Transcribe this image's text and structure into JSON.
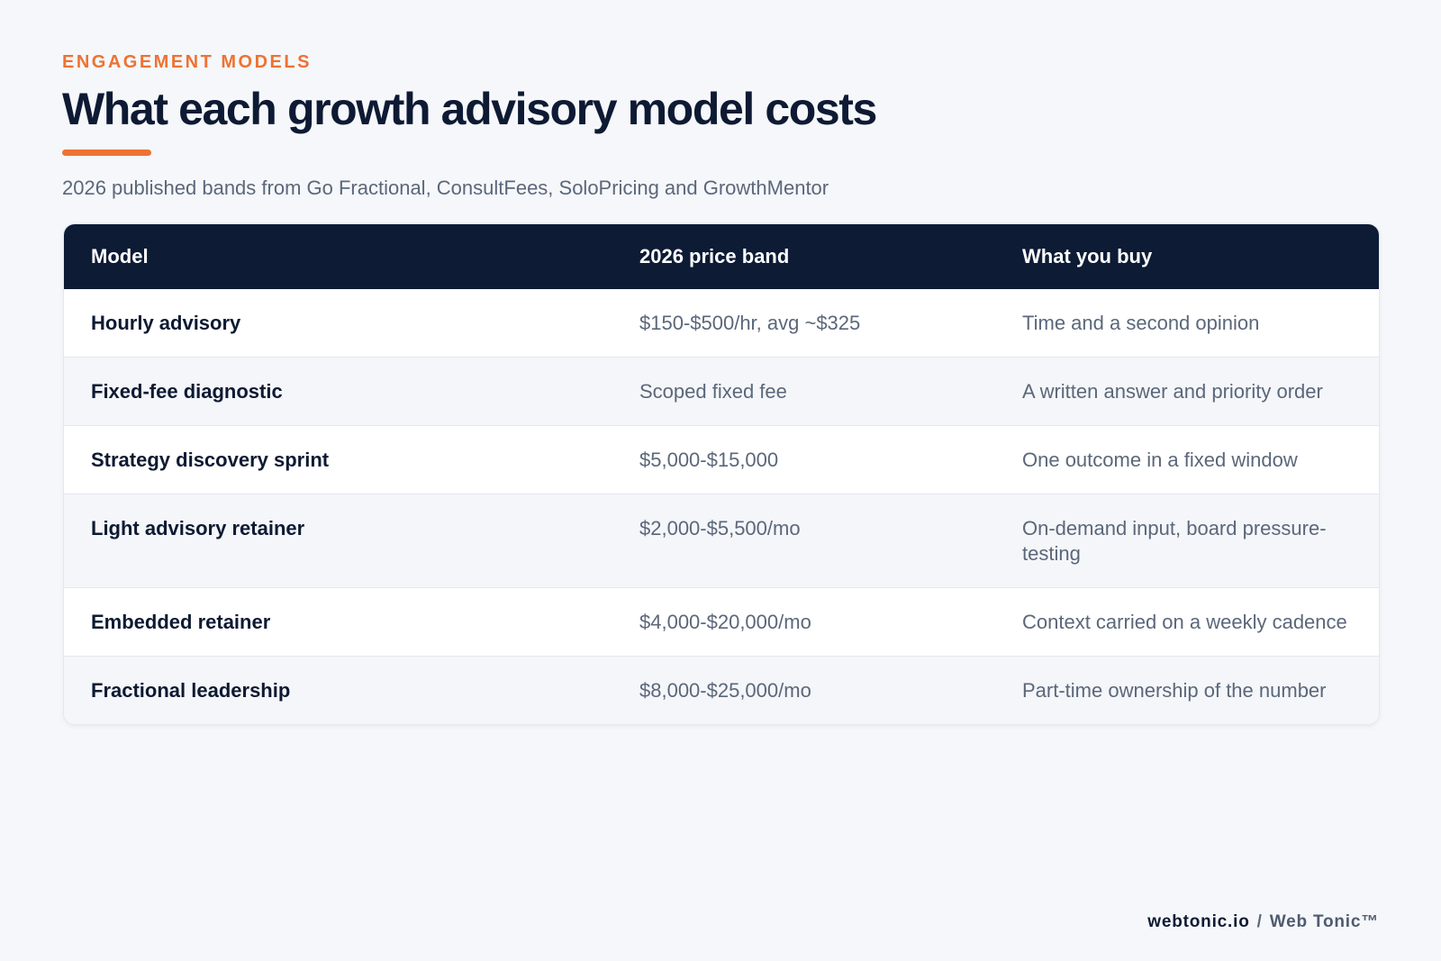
{
  "header": {
    "eyebrow": "ENGAGEMENT MODELS",
    "title": "What each growth advisory model costs",
    "subtitle": "2026 published bands from Go Fractional, ConsultFees, SoloPricing and GrowthMentor",
    "accent_color": "#ee7233"
  },
  "table": {
    "columns": [
      "Model",
      "2026 price band",
      "What you buy"
    ],
    "header_color": "#0d1b35",
    "rows": [
      {
        "model": "Hourly advisory",
        "price": "$150-$500/hr, avg ~$325",
        "buy": "Time and a second opinion"
      },
      {
        "model": "Fixed-fee diagnostic",
        "price": "Scoped fixed fee",
        "buy": "A written answer and priority order"
      },
      {
        "model": "Strategy discovery sprint",
        "price": "$5,000-$15,000",
        "buy": "One outcome in a fixed window"
      },
      {
        "model": "Light advisory retainer",
        "price": "$2,000-$5,500/mo",
        "buy": "On-demand input, board pressure-testing"
      },
      {
        "model": "Embedded retainer",
        "price": "$4,000-$20,000/mo",
        "buy": "Context carried on a weekly cadence"
      },
      {
        "model": "Fractional leadership",
        "price": "$8,000-$25,000/mo",
        "buy": "Part-time ownership of the number"
      }
    ]
  },
  "footer": {
    "domain": "webtonic.io",
    "separator": "/",
    "brand": "Web Tonic™"
  }
}
